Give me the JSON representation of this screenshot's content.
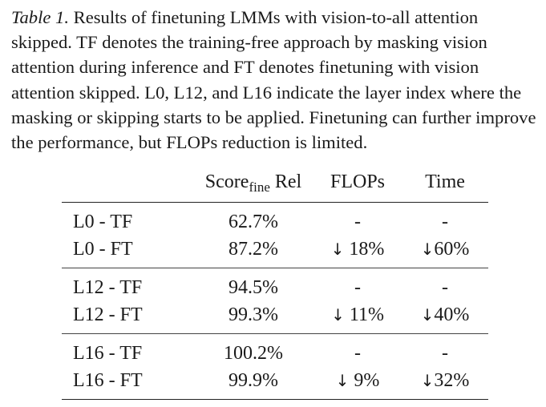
{
  "caption": {
    "label": "Table 1.",
    "text": "Results of finetuning LMMs with vision-to-all attention skipped. TF denotes the training-free approach by masking vision attention during inference and FT denotes finetuning with vision attention skipped. L0, L12, and L16 indicate the layer index where the masking or skipping starts to be applied. Finetuning can further improve the performance, but FLOPs reduction is limited."
  },
  "table": {
    "headers": {
      "method": "",
      "score_main": "Score",
      "score_sub": "fine",
      "score_tail": "Rel",
      "flops": "FLOPs",
      "time": "Time"
    },
    "rows": [
      {
        "method": "L0 - TF",
        "score": "62.7%",
        "flops_arrow": "",
        "flops": "-",
        "time_arrow": "",
        "time": "-"
      },
      {
        "method": "L0 - FT",
        "score": "87.2%",
        "flops_arrow": "↓",
        "flops": "18%",
        "time_arrow": "↓",
        "time": "60%"
      },
      {
        "method": "L12 - TF",
        "score": "94.5%",
        "flops_arrow": "",
        "flops": "-",
        "time_arrow": "",
        "time": "-"
      },
      {
        "method": "L12 - FT",
        "score": "99.3%",
        "flops_arrow": "↓",
        "flops": "11%",
        "time_arrow": "↓",
        "time": "40%"
      },
      {
        "method": "L16 - TF",
        "score": "100.2%",
        "flops_arrow": "",
        "flops": "-",
        "time_arrow": "",
        "time": "-"
      },
      {
        "method": "L16 - FT",
        "score": "99.9%",
        "flops_arrow": "↓",
        "flops": "9%",
        "time_arrow": "↓",
        "time": "32%"
      }
    ]
  }
}
